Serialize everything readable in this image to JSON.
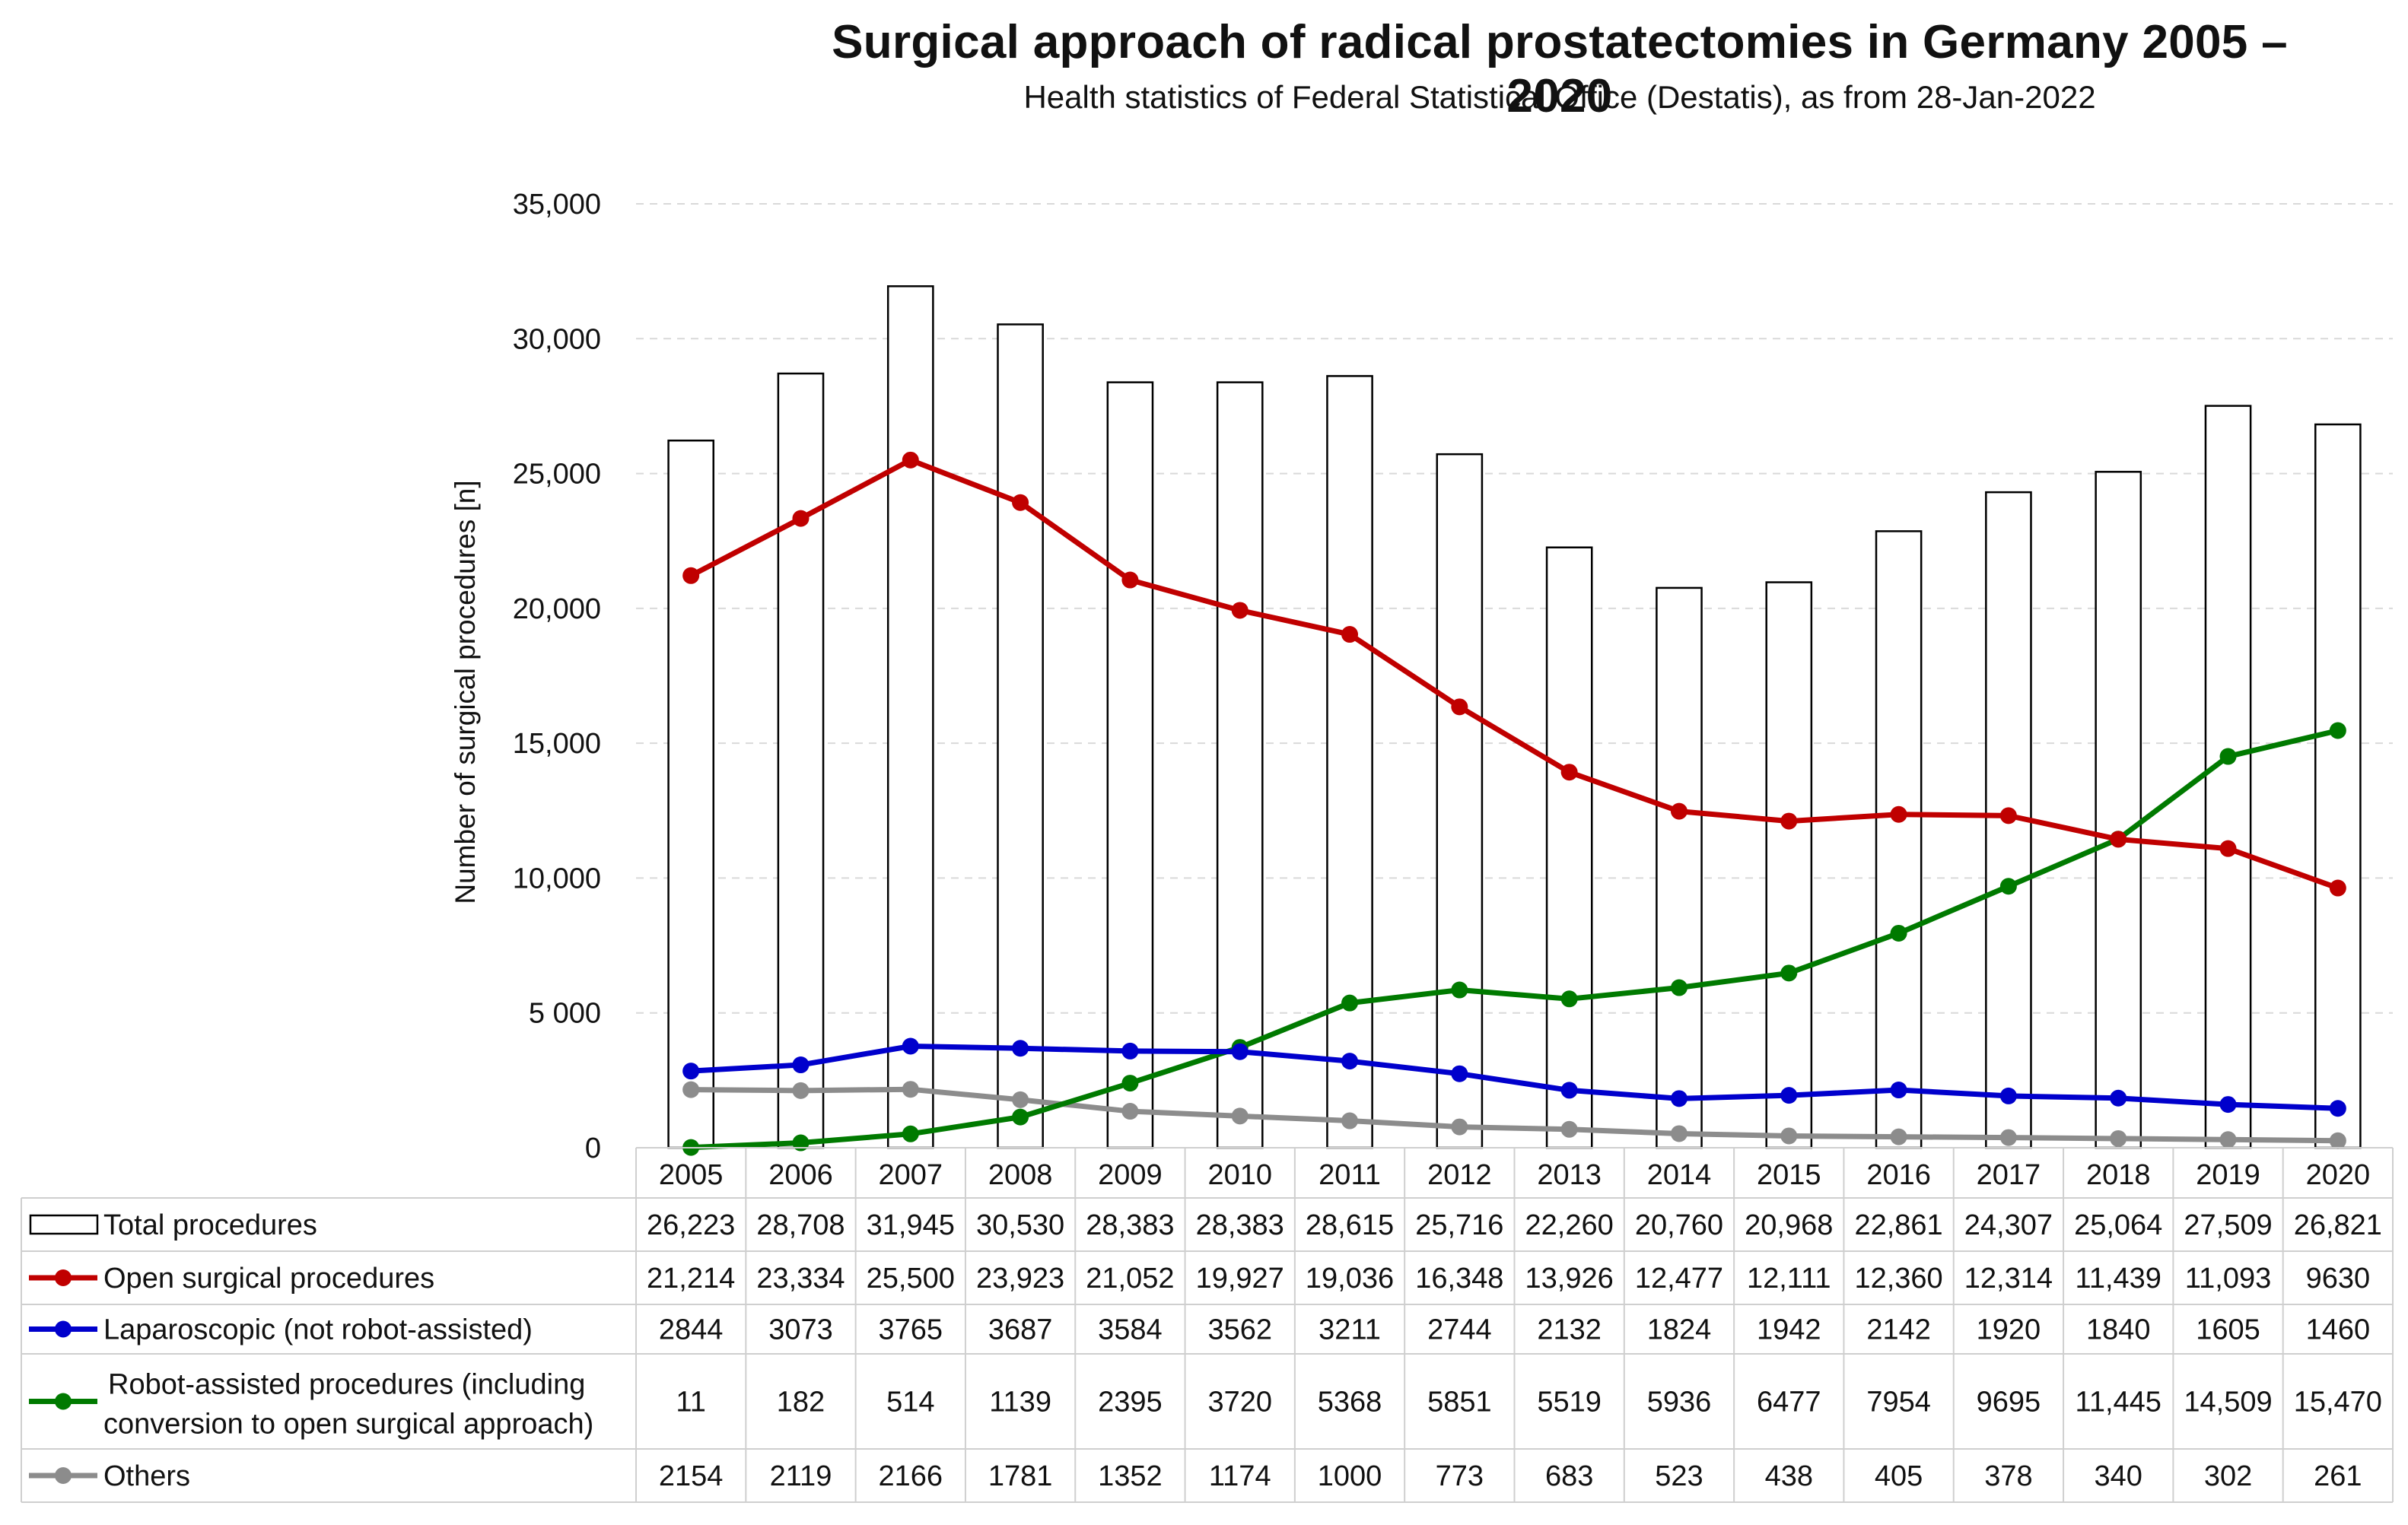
{
  "chart_data": {
    "type": "line",
    "title": "Surgical approach of radical prostatectomies in Germany 2005 – 2020",
    "subtitle": "Health statistics of Federal Statistical Office (Destatis), as from 28-Jan-2022",
    "ylabel": "Number of surgical procedures [n]",
    "xlabel": "",
    "ylim": [
      0,
      35000
    ],
    "yticks": [
      0,
      5000,
      10000,
      15000,
      20000,
      25000,
      30000,
      35000
    ],
    "ytick_labels": [
      "0",
      "5 000",
      "10,000",
      "15,000",
      "20,000",
      "25,000",
      "30,000",
      "35,000"
    ],
    "categories": [
      "2005",
      "2006",
      "2007",
      "2008",
      "2009",
      "2010",
      "2011",
      "2012",
      "2013",
      "2014",
      "2015",
      "2016",
      "2017",
      "2018",
      "2019",
      "2020"
    ],
    "series": [
      {
        "name": "Total procedures",
        "kind": "bar",
        "color": "#ffffff",
        "stroke": "#000000",
        "values": [
          26223,
          28708,
          31945,
          30530,
          28383,
          28383,
          28615,
          25716,
          22260,
          20760,
          20968,
          22861,
          24307,
          25064,
          27509,
          26821
        ],
        "table_labels": [
          "26,223",
          "28,708",
          "31,945",
          "30,530",
          "28,383",
          "28,383",
          "28,615",
          "25,716",
          "22,260",
          "20,760",
          "20,968",
          "22,861",
          "24,307",
          "25,064",
          "27,509",
          "26,821"
        ]
      },
      {
        "name": "Open surgical procedures",
        "kind": "line",
        "color": "#c00000",
        "values": [
          21214,
          23334,
          25500,
          23923,
          21052,
          19927,
          19036,
          16348,
          13926,
          12477,
          12111,
          12360,
          12314,
          11439,
          11093,
          9630
        ],
        "table_labels": [
          "21,214",
          "23,334",
          "25,500",
          "23,923",
          "21,052",
          "19,927",
          "19,036",
          "16,348",
          "13,926",
          "12,477",
          "12,111",
          "12,360",
          "12,314",
          "11,439",
          "11,093",
          "9630"
        ]
      },
      {
        "name": "Laparoscopic (not robot-assisted)",
        "kind": "line",
        "color": "#0000cc",
        "values": [
          2844,
          3073,
          3765,
          3687,
          3584,
          3562,
          3211,
          2744,
          2132,
          1824,
          1942,
          2142,
          1920,
          1840,
          1605,
          1460
        ],
        "table_labels": [
          "2844",
          "3073",
          "3765",
          "3687",
          "3584",
          "3562",
          "3211",
          "2744",
          "2132",
          "1824",
          "1942",
          "2142",
          "1920",
          "1840",
          "1605",
          "1460"
        ]
      },
      {
        "name": "Robot-assisted procedures (including conversion to open surgical approach)",
        "legend_lines": [
          "Robot-assisted procedures (including",
          "conversion to open surgical approach)"
        ],
        "kind": "line",
        "color": "#007a00",
        "values": [
          11,
          182,
          514,
          1139,
          2395,
          3720,
          5368,
          5851,
          5519,
          5936,
          6477,
          7954,
          9695,
          11445,
          14509,
          15470
        ],
        "table_labels": [
          "11",
          "182",
          "514",
          "1139",
          "2395",
          "3720",
          "5368",
          "5851",
          "5519",
          "5936",
          "6477",
          "7954",
          "9695",
          "11,445",
          "14,509",
          "15,470"
        ]
      },
      {
        "name": "Others",
        "kind": "line",
        "color": "#8c8c8c",
        "values": [
          2154,
          2119,
          2166,
          1781,
          1352,
          1174,
          1000,
          773,
          683,
          523,
          438,
          405,
          378,
          340,
          302,
          261
        ],
        "table_labels": [
          "2154",
          "2119",
          "2166",
          "1781",
          "1352",
          "1174",
          "1000",
          "773",
          "683",
          "523",
          "438",
          "405",
          "378",
          "340",
          "302",
          "261"
        ]
      }
    ],
    "grid": true,
    "data_table": true,
    "legend": "data-table-left"
  }
}
